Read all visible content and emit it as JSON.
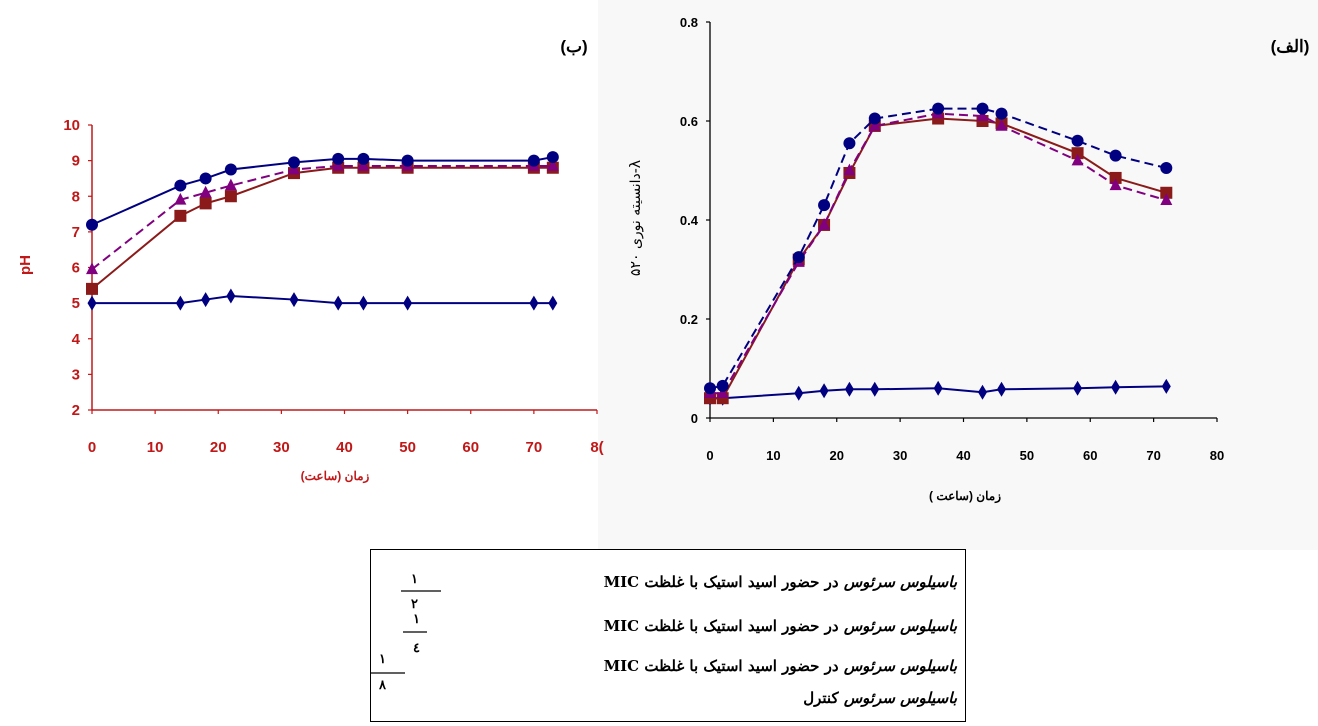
{
  "chart_data": [
    {
      "id": "alef",
      "panel_label": "(الف)",
      "type": "line",
      "ylabel": "دانسیته نوری ۵۲۰-λ",
      "xlabel": "زمان (ساعت )",
      "xlim": [
        0,
        80
      ],
      "ylim": [
        0,
        0.8
      ],
      "x_ticks": [
        "0",
        "10",
        "20",
        "30",
        "40",
        "50",
        "60",
        "70",
        "80"
      ],
      "y_ticks": [
        "0",
        "0.2",
        "0.4",
        "0.6",
        "0.8"
      ],
      "series": [
        {
          "key": "s1",
          "color": "#000080",
          "marker": "diamond",
          "dash": false,
          "points": [
            [
              0,
              0.04
            ],
            [
              2,
              0.04
            ],
            [
              14,
              0.05
            ],
            [
              18,
              0.055
            ],
            [
              22,
              0.058
            ],
            [
              26,
              0.058
            ],
            [
              36,
              0.06
            ],
            [
              43,
              0.052
            ],
            [
              46,
              0.058
            ],
            [
              58,
              0.06
            ],
            [
              64,
              0.062
            ],
            [
              72,
              0.064
            ]
          ]
        },
        {
          "key": "s2",
          "color": "#8B1A1A",
          "marker": "square",
          "dash": false,
          "points": [
            [
              0,
              0.04
            ],
            [
              2,
              0.04
            ],
            [
              14,
              0.32
            ],
            [
              18,
              0.39
            ],
            [
              22,
              0.495
            ],
            [
              26,
              0.59
            ],
            [
              36,
              0.605
            ],
            [
              43,
              0.6
            ],
            [
              46,
              0.595
            ],
            [
              58,
              0.535
            ],
            [
              64,
              0.485
            ],
            [
              72,
              0.455
            ]
          ]
        },
        {
          "key": "s3",
          "color": "#800080",
          "marker": "triangle",
          "dash": true,
          "points": [
            [
              0,
              0.05
            ],
            [
              2,
              0.05
            ],
            [
              14,
              0.315
            ],
            [
              18,
              0.39
            ],
            [
              22,
              0.5
            ],
            [
              26,
              0.59
            ],
            [
              36,
              0.615
            ],
            [
              43,
              0.61
            ],
            [
              46,
              0.59
            ],
            [
              58,
              0.52
            ],
            [
              64,
              0.47
            ],
            [
              72,
              0.44
            ]
          ]
        },
        {
          "key": "s4",
          "color": "#000080",
          "marker": "circle",
          "dash": true,
          "points": [
            [
              0,
              0.06
            ],
            [
              2,
              0.065
            ],
            [
              14,
              0.325
            ],
            [
              18,
              0.43
            ],
            [
              22,
              0.555
            ],
            [
              26,
              0.605
            ],
            [
              36,
              0.625
            ],
            [
              43,
              0.625
            ],
            [
              46,
              0.615
            ],
            [
              58,
              0.56
            ],
            [
              64,
              0.53
            ],
            [
              72,
              0.505
            ]
          ]
        }
      ]
    },
    {
      "id": "be",
      "panel_label": "(ب)",
      "type": "line",
      "ylabel": "pH",
      "xlabel": "زمان (ساعت)",
      "xlim": [
        0,
        80
      ],
      "ylim": [
        2,
        10
      ],
      "x_ticks": [
        "0",
        "10",
        "20",
        "30",
        "40",
        "50",
        "60",
        "70",
        "8("
      ],
      "y_ticks": [
        "2",
        "3",
        "4",
        "5",
        "6",
        "7",
        "8",
        "9",
        "10"
      ],
      "series": [
        {
          "key": "s1",
          "color": "#000080",
          "marker": "diamond",
          "dash": false,
          "points": [
            [
              0,
              5.0
            ],
            [
              14,
              5.0
            ],
            [
              18,
              5.1
            ],
            [
              22,
              5.2
            ],
            [
              32,
              5.1
            ],
            [
              39,
              5.0
            ],
            [
              43,
              5.0
            ],
            [
              50,
              5.0
            ],
            [
              70,
              5.0
            ],
            [
              73,
              5.0
            ]
          ]
        },
        {
          "key": "s2",
          "color": "#8B1A1A",
          "marker": "square",
          "dash": false,
          "points": [
            [
              0,
              5.4
            ],
            [
              14,
              7.45
            ],
            [
              18,
              7.8
            ],
            [
              22,
              8.0
            ],
            [
              32,
              8.65
            ],
            [
              39,
              8.8
            ],
            [
              43,
              8.8
            ],
            [
              50,
              8.8
            ],
            [
              70,
              8.8
            ],
            [
              73,
              8.8
            ]
          ]
        },
        {
          "key": "s3",
          "color": "#800080",
          "marker": "triangle",
          "dash": true,
          "points": [
            [
              0,
              5.95
            ],
            [
              14,
              7.9
            ],
            [
              18,
              8.1
            ],
            [
              22,
              8.3
            ],
            [
              32,
              8.75
            ],
            [
              39,
              8.85
            ],
            [
              43,
              8.85
            ],
            [
              50,
              8.85
            ],
            [
              70,
              8.85
            ],
            [
              73,
              8.85
            ]
          ]
        },
        {
          "key": "s4",
          "color": "#000080",
          "marker": "circle",
          "dash": false,
          "points": [
            [
              0,
              7.2
            ],
            [
              14,
              8.3
            ],
            [
              18,
              8.5
            ],
            [
              22,
              8.75
            ],
            [
              32,
              8.95
            ],
            [
              39,
              9.05
            ],
            [
              43,
              9.05
            ],
            [
              50,
              9.0
            ],
            [
              70,
              9.0
            ],
            [
              73,
              9.1
            ]
          ]
        }
      ]
    }
  ],
  "legend": {
    "items": [
      {
        "key": "s1",
        "italic": "باسیلوس سرئوس",
        "rest": " در حضور اسید استیک با غلظت MIC",
        "frac_num": "۱",
        "frac_den": "۲"
      },
      {
        "key": "s2",
        "italic": "باسیلوس سرئوس",
        "rest": " در حضور اسید استیک با غلظت MIC",
        "frac_num": "۱",
        "frac_den": "٤"
      },
      {
        "key": "s3",
        "italic": "باسیلوس سرئوس",
        "rest": " در حضور اسید استیک با غلظت MIC",
        "frac_num": "۱",
        "frac_den": "۸"
      },
      {
        "key": "s4",
        "italic": "باسیلوس سرئوس",
        "rest": " کنترل",
        "frac_num": "",
        "frac_den": ""
      }
    ]
  }
}
